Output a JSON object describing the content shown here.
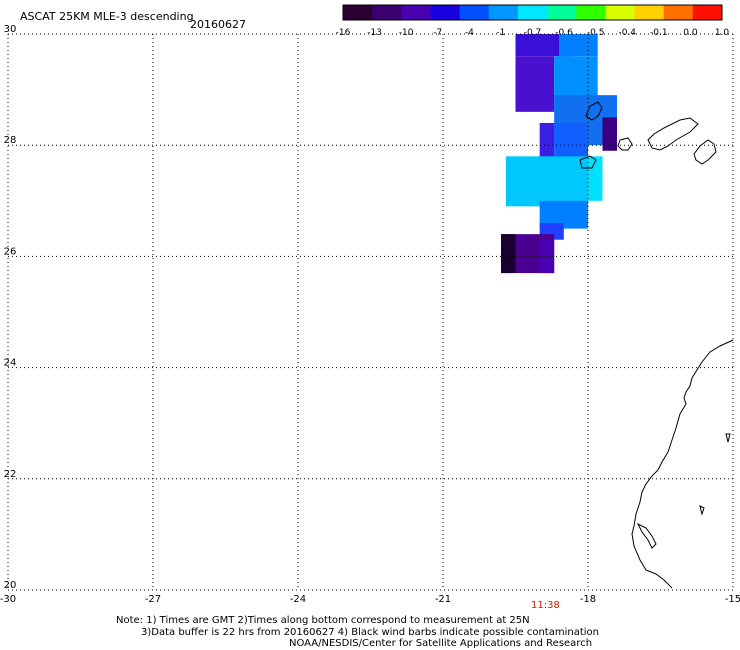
{
  "header": {
    "title": "ASCAT 25KM MLE-3 descending",
    "date": "20160627"
  },
  "colorbar": {
    "labels": [
      "-16",
      "-13",
      "-10",
      "-7",
      "-4",
      "-1",
      "-0.7",
      "-0.6",
      "-0.5",
      "-0.4",
      "-0.1",
      "0.0",
      "1.0"
    ],
    "colors": [
      "#2a0030",
      "#3a0070",
      "#4800b0",
      "#1a00e0",
      "#0050ff",
      "#0098ff",
      "#00e8ff",
      "#00ff9a",
      "#30ff00",
      "#d8ff00",
      "#ffd000",
      "#ff7000",
      "#ff1000"
    ]
  },
  "axes": {
    "x_ticks": [
      "-30",
      "-27",
      "-24",
      "-21",
      "-18",
      "-15"
    ],
    "y_ticks": [
      "20",
      "22",
      "24",
      "26",
      "28",
      "30"
    ],
    "x_range": [
      -30,
      -15
    ],
    "y_range": [
      20,
      30
    ]
  },
  "time_label": "11:38",
  "time_color": "#c02000",
  "notes": {
    "line1": "Note: 1) Times are GMT 2)Times along bottom correspond to measurement at 25N",
    "line2": "3)Data buffer is 22 hrs from 20160627 4) Black wind barbs indicate possible contamination",
    "line3": "NOAA/NESDIS/Center for Satellite Applications and Research"
  },
  "data_cells": [
    {
      "lon0": -19.5,
      "lon1": -18.3,
      "lat0": 29.6,
      "lat1": 30.0,
      "color": "#3a10d8"
    },
    {
      "lon0": -18.6,
      "lon1": -17.8,
      "lat0": 29.6,
      "lat1": 30.0,
      "color": "#0080ff"
    },
    {
      "lon0": -19.5,
      "lon1": -18.7,
      "lat0": 28.6,
      "lat1": 29.6,
      "color": "#4a10d0"
    },
    {
      "lon0": -18.7,
      "lon1": -17.8,
      "lat0": 28.6,
      "lat1": 29.6,
      "color": "#0090ff"
    },
    {
      "lon0": -18.7,
      "lon1": -17.4,
      "lat0": 28.0,
      "lat1": 28.9,
      "color": "#1070f0"
    },
    {
      "lon0": -18.7,
      "lon1": -18.0,
      "lat0": 27.7,
      "lat1": 28.4,
      "color": "#1060ff"
    },
    {
      "lon0": -19.0,
      "lon1": -18.7,
      "lat0": 27.7,
      "lat1": 28.4,
      "color": "#3a20e0"
    },
    {
      "lon0": -17.7,
      "lon1": -17.4,
      "lat0": 27.9,
      "lat1": 28.5,
      "color": "#3a0080"
    },
    {
      "lon0": -19.7,
      "lon1": -18.0,
      "lat0": 26.9,
      "lat1": 27.8,
      "color": "#00c8ff"
    },
    {
      "lon0": -18.0,
      "lon1": -17.7,
      "lat0": 27.0,
      "lat1": 27.8,
      "color": "#00e0ff"
    },
    {
      "lon0": -19.0,
      "lon1": -18.0,
      "lat0": 26.5,
      "lat1": 27.0,
      "color": "#0080ff"
    },
    {
      "lon0": -19.0,
      "lon1": -18.5,
      "lat0": 26.3,
      "lat1": 26.6,
      "color": "#2040ff"
    },
    {
      "lon0": -19.8,
      "lon1": -18.7,
      "lat0": 25.7,
      "lat1": 26.4,
      "color": "#4a0090"
    },
    {
      "lon0": -19.8,
      "lon1": -19.5,
      "lat0": 25.7,
      "lat1": 26.4,
      "color": "#1a0030"
    },
    {
      "lon0": -19.0,
      "lon1": -18.7,
      "lat0": 25.7,
      "lat1": 26.3,
      "color": "#4800b0"
    }
  ]
}
